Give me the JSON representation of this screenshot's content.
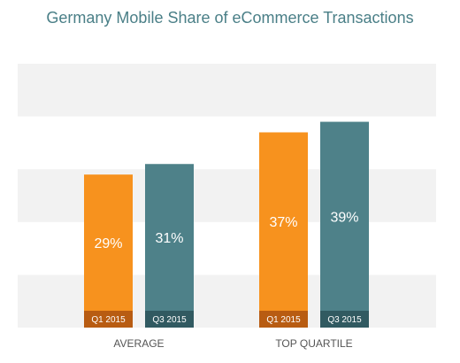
{
  "chart_data": {
    "type": "bar",
    "title": "Germany Mobile Share of eCommerce Transactions",
    "categories": [
      "AVERAGE",
      "TOP QUARTILE"
    ],
    "series": [
      {
        "name": "Q1 2015",
        "values": [
          29,
          37
        ]
      },
      {
        "name": "Q3 2015",
        "values": [
          31,
          39
        ]
      }
    ],
    "value_labels": [
      [
        "29%",
        "37%"
      ],
      [
        "31%",
        "39%"
      ]
    ],
    "ylim": [
      0,
      50
    ],
    "grid": "alternating horizontal bands",
    "colors": {
      "Q1 2015": "#f7921e",
      "Q3 2015": "#4e8189",
      "Q1 2015_badge": "#b85c12",
      "Q3 2015_badge": "#315a61",
      "band": "#f2f2f2"
    }
  }
}
